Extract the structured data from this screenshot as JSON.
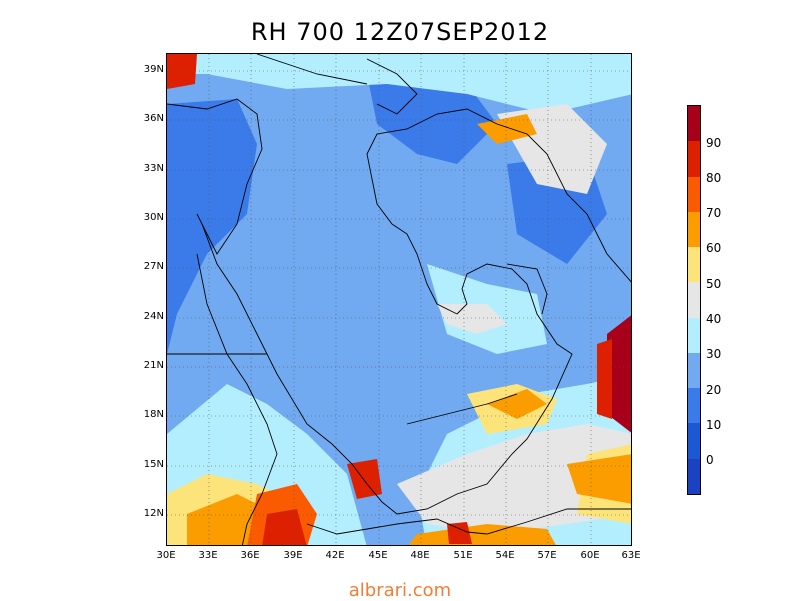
{
  "title": "RH 700 12Z07SEP2012",
  "watermark": "albrari.com",
  "lat_labels": [
    "39N",
    "36N",
    "33N",
    "30N",
    "27N",
    "24N",
    "21N",
    "18N",
    "15N",
    "12N"
  ],
  "lon_labels": [
    "30E",
    "33E",
    "36E",
    "39E",
    "42E",
    "45E",
    "48E",
    "51E",
    "54E",
    "57E",
    "60E",
    "63E"
  ],
  "colorbar": {
    "labels": [
      "90",
      "80",
      "70",
      "60",
      "50",
      "40",
      "30",
      "20",
      "10",
      "0"
    ],
    "colors": [
      "#a8001b",
      "#dc2000",
      "#fa5a00",
      "#fb9c00",
      "#fde47a",
      "#e6e6e6",
      "#b3eefe",
      "#71aaf0",
      "#3a7ae9",
      "#1c58d4",
      "#1a43c2"
    ]
  },
  "palette": {
    "land_dry": "#71aaf0",
    "dry_deep": "#3a7ae9",
    "moist_light": "#b3eefe",
    "neutral": "#e6e6e6",
    "yellow": "#fde47a",
    "orange": "#fb9c00",
    "red_orange": "#fa5a00",
    "red": "#dc2000",
    "dark_red": "#a8001b"
  }
}
